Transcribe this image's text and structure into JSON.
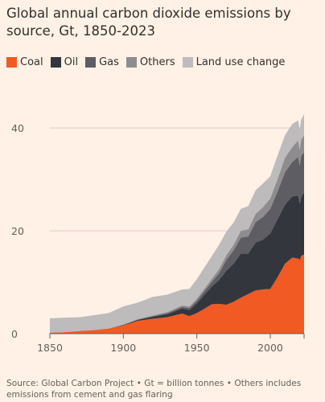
{
  "title": "Global annual carbon dioxide emissions by source, Gt, 1850-2023",
  "source_note": "Source: Global Carbon Project • Gt = billion tonnes • Others includes emissions from cement and gas flaring",
  "chart_data": {
    "type": "area",
    "stacked": true,
    "title": "Global annual carbon dioxide emissions by source, Gt, 1850-2023",
    "xlabel": "",
    "ylabel": "",
    "xlim": [
      1850,
      2023
    ],
    "ylim": [
      0,
      43
    ],
    "x_ticks": [
      1850,
      1900,
      1950,
      2000
    ],
    "y_ticks": [
      0,
      20,
      40
    ],
    "gridlines": "horizontal",
    "legend_position": "top",
    "x": [
      1850,
      1860,
      1870,
      1880,
      1890,
      1900,
      1910,
      1920,
      1930,
      1940,
      1945,
      1950,
      1955,
      1960,
      1965,
      1970,
      1975,
      1980,
      1985,
      1990,
      1995,
      2000,
      2005,
      2010,
      2015,
      2019,
      2020,
      2021,
      2023
    ],
    "series": [
      {
        "name": "Coal",
        "color": "#f15a22",
        "values": [
          0.2,
          0.3,
          0.5,
          0.7,
          1.0,
          1.6,
          2.5,
          2.9,
          3.2,
          3.9,
          3.4,
          4.0,
          4.8,
          5.7,
          5.8,
          5.6,
          6.2,
          7.0,
          7.7,
          8.4,
          8.6,
          8.7,
          11.0,
          13.6,
          14.8,
          14.6,
          14.3,
          15.1,
          15.4
        ]
      },
      {
        "name": "Oil",
        "color": "#33363d",
        "values": [
          0,
          0,
          0,
          0,
          0,
          0.1,
          0.2,
          0.4,
          0.6,
          1.0,
          1.2,
          1.9,
          2.7,
          3.4,
          4.6,
          6.6,
          7.4,
          8.6,
          7.9,
          9.3,
          9.7,
          10.8,
          11.3,
          11.5,
          11.9,
          12.3,
          11.0,
          11.5,
          12.1
        ]
      },
      {
        "name": "Gas",
        "color": "#5d5d63",
        "values": [
          0,
          0,
          0,
          0,
          0,
          0,
          0.05,
          0.1,
          0.2,
          0.3,
          0.4,
          0.5,
          0.7,
          0.9,
          1.3,
          2.1,
          2.6,
          3.1,
          3.3,
          4.0,
          4.4,
          4.8,
          5.4,
          6.3,
          6.7,
          7.5,
          7.4,
          7.9,
          7.8
        ]
      },
      {
        "name": "Others",
        "color": "#8f8c8f",
        "values": [
          0,
          0,
          0,
          0,
          0,
          0.1,
          0.1,
          0.15,
          0.2,
          0.3,
          0.3,
          0.4,
          0.5,
          0.6,
          0.8,
          0.9,
          1.1,
          1.3,
          1.4,
          1.6,
          1.9,
          2.0,
          2.4,
          2.8,
          2.9,
          3.2,
          3.1,
          3.2,
          3.3
        ]
      },
      {
        "name": "Land use change",
        "color": "#bdbbbc",
        "values": [
          2.8,
          2.8,
          2.7,
          2.9,
          3.0,
          3.5,
          3.2,
          3.6,
          3.4,
          3.1,
          3.4,
          3.8,
          4.1,
          4.4,
          4.7,
          4.6,
          4.3,
          4.3,
          4.5,
          4.6,
          4.6,
          4.3,
          4.6,
          4.4,
          4.5,
          3.9,
          3.9,
          3.9,
          4.1
        ]
      }
    ]
  }
}
